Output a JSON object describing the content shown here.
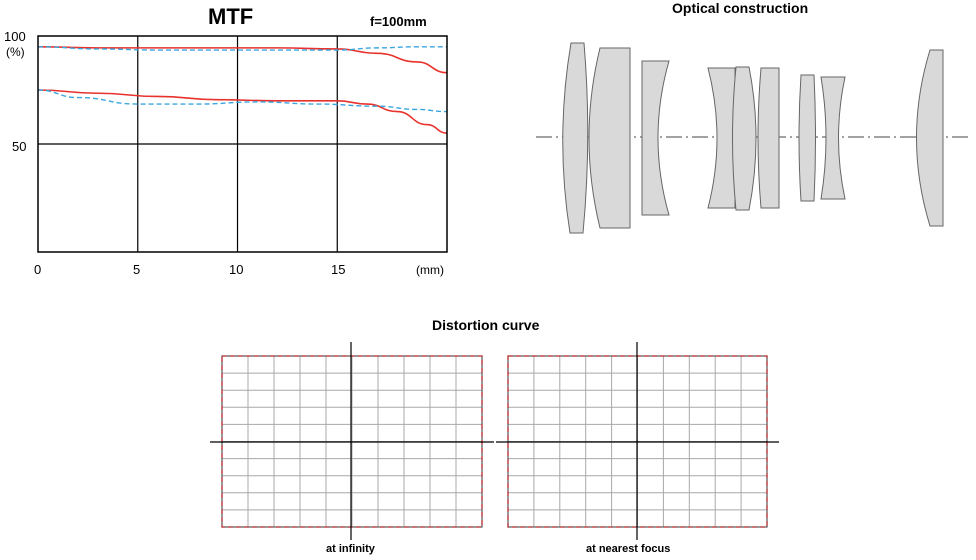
{
  "mtf": {
    "title": "MTF",
    "focal_length": "f=100mm"
  },
  "chart_data": {
    "type": "line",
    "xlim": [
      0,
      20.5
    ],
    "ylim": [
      0,
      100
    ],
    "x_ticks": [
      "0",
      "5",
      "10",
      "15"
    ],
    "x_unit": "(mm)",
    "y_ticks": [
      "100",
      "50"
    ],
    "y_unit": "(%)",
    "grid": true,
    "series": [
      {
        "color": "#e8322d",
        "style": "solid",
        "x": [
          0,
          3,
          6,
          9,
          12,
          15,
          17,
          19,
          20.5
        ],
        "y": [
          95,
          94.5,
          94.5,
          94.5,
          94.5,
          94,
          92,
          88,
          83
        ]
      },
      {
        "color": "#3aa6e0",
        "style": "dashed",
        "x": [
          0,
          3,
          6,
          9,
          12,
          15,
          17,
          19,
          20.5
        ],
        "y": [
          95,
          94,
          93.5,
          93.5,
          93.5,
          93.5,
          94.5,
          95,
          95
        ]
      },
      {
        "color": "#e8322d",
        "style": "solid",
        "x": [
          0,
          3,
          6,
          9,
          12,
          15,
          16.5,
          18,
          19.5,
          20.5
        ],
        "y": [
          75,
          73.5,
          72,
          70.5,
          70,
          70,
          68.5,
          65,
          59,
          55
        ]
      },
      {
        "color": "#3aa6e0",
        "style": "dashed",
        "x": [
          0,
          2,
          5,
          8,
          11,
          14,
          17,
          19,
          20.5
        ],
        "y": [
          75,
          71.5,
          68.5,
          68.5,
          69.5,
          68.5,
          67.5,
          66,
          65
        ]
      }
    ]
  },
  "optical": {
    "title": "Optical construction"
  },
  "distortion": {
    "title": "Distortion curve",
    "panels": [
      {
        "label": "at infinity"
      },
      {
        "label": "at nearest focus"
      }
    ],
    "cols": 10,
    "rows": 10,
    "grid_color": "#a8a8a8",
    "frame_color": "#c0383a"
  },
  "colors": {
    "lens_fill": "#d9d9d9",
    "lens_stroke": "#666666",
    "axis": "#000000"
  }
}
